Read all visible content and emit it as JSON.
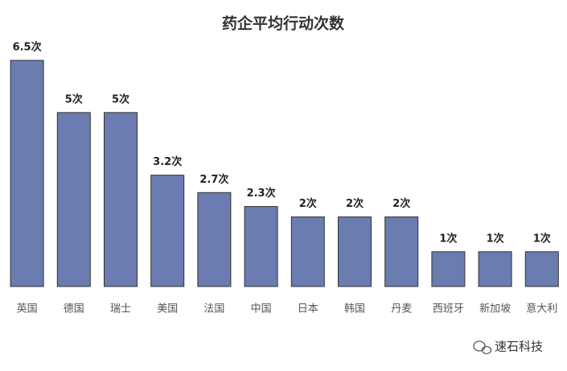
{
  "chart_data": {
    "type": "bar",
    "title": "药企平均行动次数",
    "categories": [
      "英国",
      "德国",
      "瑞士",
      "美国",
      "法国",
      "中国",
      "日本",
      "韩国",
      "丹麦",
      "西班牙",
      "新加坡",
      "意大利"
    ],
    "values": [
      6.5,
      5,
      5,
      3.2,
      2.7,
      2.3,
      2,
      2,
      2,
      1,
      1,
      1
    ],
    "value_labels": [
      "6.5次",
      "5次",
      "5次",
      "3.2次",
      "2.7次",
      "2.3次",
      "2次",
      "2次",
      "2次",
      "1次",
      "1次",
      "1次"
    ],
    "color": "#6a7cb0"
  },
  "watermark": "速石科技"
}
